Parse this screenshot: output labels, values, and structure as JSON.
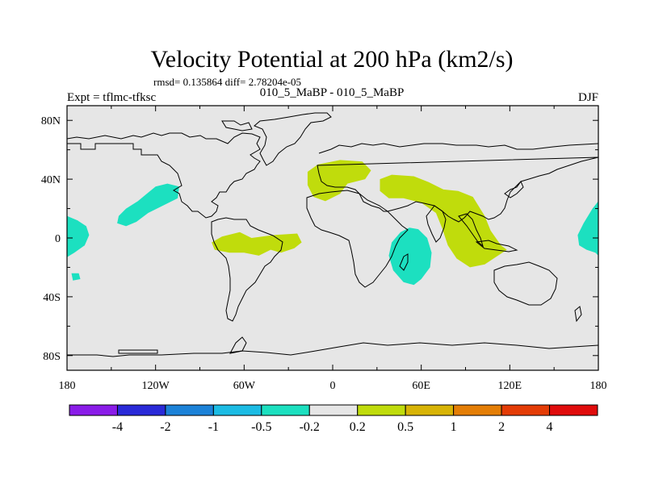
{
  "chart_data": {
    "type": "heatmap",
    "title": "Velocity Potential at 200 hPa (km2/s)",
    "stats_line": "rmsd= 0.135864  diff= 2.78204e-05",
    "left_label": "Expt = tflmc-tfksc",
    "center_label": "010_5_MaBP - 010_5_MaBP",
    "right_label": "DJF",
    "xlim": [
      -180,
      180
    ],
    "ylim": [
      -90,
      90
    ],
    "x_ticks": [
      {
        "value": -180,
        "label": "180"
      },
      {
        "value": -120,
        "label": "120W"
      },
      {
        "value": -60,
        "label": "60W"
      },
      {
        "value": 0,
        "label": "0"
      },
      {
        "value": 60,
        "label": "60E"
      },
      {
        "value": 120,
        "label": "120E"
      },
      {
        "value": 180,
        "label": "180"
      }
    ],
    "y_ticks": [
      {
        "value": 80,
        "label": "80N"
      },
      {
        "value": 40,
        "label": "40N"
      },
      {
        "value": 0,
        "label": "0"
      },
      {
        "value": -40,
        "label": "40S"
      },
      {
        "value": -80,
        "label": "80S"
      }
    ],
    "colorbar": {
      "colors": [
        "#8a1ce8",
        "#2a2ad8",
        "#1c82d8",
        "#1cbce4",
        "#1ce0c0",
        "#e6e6e6",
        "#c0dc0c",
        "#d8b406",
        "#e47e06",
        "#e43c06",
        "#e00c0c"
      ],
      "labels": [
        "-4",
        "-2",
        "-1",
        "-0.5",
        "-0.2",
        "0.2",
        "0.5",
        "1",
        "2",
        "4"
      ]
    },
    "regions": [
      {
        "name": "negative-anomaly-date-line-east",
        "level": "-0.2 to -0.5",
        "color": "#1ce0c0",
        "points": [
          [
            -180,
            15
          ],
          [
            -173,
            12
          ],
          [
            -167,
            8
          ],
          [
            -165,
            2
          ],
          [
            -168,
            -5
          ],
          [
            -175,
            -10
          ],
          [
            -180,
            -13
          ]
        ]
      },
      {
        "name": "negative-anomaly-date-line-west",
        "level": "-0.2 to -0.5",
        "color": "#1ce0c0",
        "points": [
          [
            180,
            25
          ],
          [
            176,
            20
          ],
          [
            170,
            10
          ],
          [
            166,
            2
          ],
          [
            167,
            -5
          ],
          [
            172,
            -8
          ],
          [
            178,
            -10
          ],
          [
            180,
            -12
          ]
        ]
      },
      {
        "name": "negative-anomaly-north-pacific",
        "level": "-0.2 to -0.5",
        "color": "#1ce0c0",
        "points": [
          [
            -146,
            10
          ],
          [
            -145,
            15
          ],
          [
            -140,
            20
          ],
          [
            -132,
            25
          ],
          [
            -126,
            30
          ],
          [
            -120,
            35
          ],
          [
            -112,
            37
          ],
          [
            -104,
            35
          ],
          [
            -105,
            27
          ],
          [
            -115,
            22
          ],
          [
            -125,
            17
          ],
          [
            -133,
            11
          ],
          [
            -140,
            8
          ]
        ]
      },
      {
        "name": "negative-anomaly-south-pacific",
        "level": "-0.2 to -0.5",
        "color": "#1ce0c0",
        "points": [
          [
            -177,
            -24
          ],
          [
            -172,
            -24
          ],
          [
            -171,
            -28
          ],
          [
            -176,
            -29
          ]
        ]
      },
      {
        "name": "negative-anomaly-indian-ocean",
        "level": "-0.2 to -0.5",
        "color": "#1ce0c0",
        "points": [
          [
            52,
            7
          ],
          [
            58,
            6
          ],
          [
            64,
            0
          ],
          [
            67,
            -10
          ],
          [
            66,
            -20
          ],
          [
            60,
            -28
          ],
          [
            55,
            -32
          ],
          [
            48,
            -30
          ],
          [
            41,
            -22
          ],
          [
            38,
            -12
          ],
          [
            40,
            -3
          ],
          [
            46,
            4
          ]
        ]
      },
      {
        "name": "positive-anomaly-south-america",
        "level": "0.2 to 0.5",
        "color": "#c0dc0c",
        "points": [
          [
            -82,
            -3
          ],
          [
            -75,
            1
          ],
          [
            -63,
            4
          ],
          [
            -55,
            0
          ],
          [
            -40,
            2
          ],
          [
            -24,
            3
          ],
          [
            -21,
            -3
          ],
          [
            -26,
            -7
          ],
          [
            -35,
            -10
          ],
          [
            -42,
            -8
          ],
          [
            -50,
            -12
          ],
          [
            -60,
            -10
          ],
          [
            -70,
            -10
          ],
          [
            -80,
            -8
          ]
        ]
      },
      {
        "name": "positive-anomaly-mediterranean",
        "level": "0.2 to 0.5",
        "color": "#c0dc0c",
        "points": [
          [
            -17,
            45
          ],
          [
            -10,
            50
          ],
          [
            5,
            53
          ],
          [
            20,
            52
          ],
          [
            26,
            46
          ],
          [
            22,
            40
          ],
          [
            10,
            37
          ],
          [
            5,
            30
          ],
          [
            -5,
            25
          ],
          [
            -13,
            28
          ],
          [
            -17,
            36
          ]
        ]
      },
      {
        "name": "positive-anomaly-asia-maritime",
        "level": "0.2 to 0.5",
        "color": "#c0dc0c",
        "points": [
          [
            32,
            40
          ],
          [
            40,
            43
          ],
          [
            55,
            42
          ],
          [
            65,
            38
          ],
          [
            75,
            33
          ],
          [
            85,
            32
          ],
          [
            95,
            28
          ],
          [
            103,
            15
          ],
          [
            107,
            5
          ],
          [
            114,
            -5
          ],
          [
            118,
            -8
          ],
          [
            112,
            -12
          ],
          [
            103,
            -18
          ],
          [
            93,
            -20
          ],
          [
            84,
            -14
          ],
          [
            78,
            -5
          ],
          [
            74,
            7
          ],
          [
            70,
            17
          ],
          [
            60,
            24
          ],
          [
            48,
            27
          ],
          [
            38,
            27
          ],
          [
            32,
            32
          ]
        ]
      }
    ]
  }
}
